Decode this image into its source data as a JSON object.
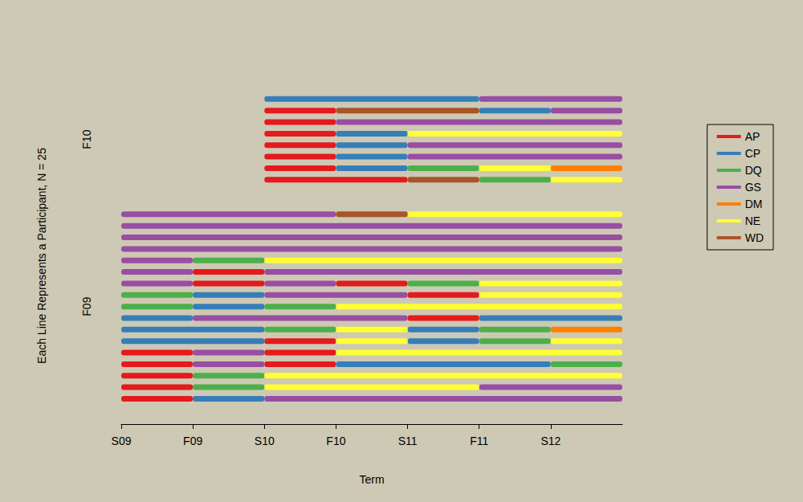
{
  "chart_data": {
    "type": "timeline",
    "xlabel": "Term",
    "ylabel": "Each Line Represents a Participant, N = 25",
    "xlim": [
      0,
      7
    ],
    "xticks": [
      {
        "value": 0,
        "label": "S09"
      },
      {
        "value": 1,
        "label": "F09"
      },
      {
        "value": 2,
        "label": "S10"
      },
      {
        "value": 3,
        "label": "F10"
      },
      {
        "value": 4,
        "label": "S11"
      },
      {
        "value": 5,
        "label": "F11"
      },
      {
        "value": 6,
        "label": "S12"
      }
    ],
    "legend": "right",
    "series": [
      {
        "name": "AP",
        "color": "#e41a1c"
      },
      {
        "name": "CP",
        "color": "#377eb8"
      },
      {
        "name": "DQ",
        "color": "#4daf4a"
      },
      {
        "name": "GS",
        "color": "#984ea3"
      },
      {
        "name": "DM",
        "color": "#ff7f00"
      },
      {
        "name": "NE",
        "color": "#ffff33"
      },
      {
        "name": "WD",
        "color": "#a65628"
      }
    ],
    "groups": [
      {
        "label": "F10",
        "participants": [
          [
            [
              2,
              5,
              "CP"
            ],
            [
              5,
              7,
              "GS"
            ]
          ],
          [
            [
              2,
              3,
              "AP"
            ],
            [
              3,
              5,
              "WD"
            ],
            [
              5,
              6,
              "CP"
            ],
            [
              6,
              7,
              "GS"
            ]
          ],
          [
            [
              2,
              3,
              "AP"
            ],
            [
              3,
              7,
              "GS"
            ]
          ],
          [
            [
              2,
              3,
              "AP"
            ],
            [
              3,
              4,
              "CP"
            ],
            [
              4,
              7,
              "NE"
            ]
          ],
          [
            [
              2,
              3,
              "AP"
            ],
            [
              3,
              4,
              "CP"
            ],
            [
              4,
              7,
              "GS"
            ]
          ],
          [
            [
              2,
              3,
              "AP"
            ],
            [
              3,
              4,
              "CP"
            ],
            [
              4,
              7,
              "GS"
            ]
          ],
          [
            [
              2,
              3,
              "AP"
            ],
            [
              3,
              4,
              "CP"
            ],
            [
              4,
              5,
              "DQ"
            ],
            [
              5,
              6,
              "NE"
            ],
            [
              6,
              7,
              "DM"
            ]
          ],
          [
            [
              2,
              4,
              "AP"
            ],
            [
              4,
              5,
              "WD"
            ],
            [
              5,
              6,
              "DQ"
            ],
            [
              6,
              7,
              "NE"
            ]
          ]
        ]
      },
      {
        "label": "F09",
        "participants": [
          [
            [
              0,
              3,
              "GS"
            ],
            [
              3,
              4,
              "WD"
            ],
            [
              4,
              7,
              "NE"
            ]
          ],
          [
            [
              0,
              7,
              "GS"
            ]
          ],
          [
            [
              0,
              7,
              "GS"
            ]
          ],
          [
            [
              0,
              7,
              "GS"
            ]
          ],
          [
            [
              0,
              1,
              "GS"
            ],
            [
              1,
              2,
              "DQ"
            ],
            [
              2,
              7,
              "NE"
            ]
          ],
          [
            [
              0,
              1,
              "GS"
            ],
            [
              1,
              2,
              "AP"
            ],
            [
              2,
              7,
              "GS"
            ]
          ],
          [
            [
              0,
              1,
              "GS"
            ],
            [
              1,
              2,
              "AP"
            ],
            [
              2,
              3,
              "GS"
            ],
            [
              3,
              4,
              "AP"
            ],
            [
              4,
              5,
              "DQ"
            ],
            [
              5,
              7,
              "NE"
            ]
          ],
          [
            [
              0,
              1,
              "DQ"
            ],
            [
              1,
              2,
              "CP"
            ],
            [
              2,
              4,
              "GS"
            ],
            [
              4,
              5,
              "AP"
            ],
            [
              5,
              7,
              "NE"
            ]
          ],
          [
            [
              0,
              1,
              "DQ"
            ],
            [
              1,
              2,
              "CP"
            ],
            [
              2,
              3,
              "DQ"
            ],
            [
              3,
              7,
              "NE"
            ]
          ],
          [
            [
              0,
              1,
              "CP"
            ],
            [
              1,
              4,
              "GS"
            ],
            [
              4,
              5,
              "AP"
            ],
            [
              5,
              7,
              "CP"
            ]
          ],
          [
            [
              0,
              2,
              "CP"
            ],
            [
              2,
              3,
              "DQ"
            ],
            [
              3,
              4,
              "NE"
            ],
            [
              4,
              5,
              "CP"
            ],
            [
              5,
              6,
              "DQ"
            ],
            [
              6,
              7,
              "DM"
            ]
          ],
          [
            [
              0,
              2,
              "CP"
            ],
            [
              2,
              3,
              "AP"
            ],
            [
              3,
              4,
              "NE"
            ],
            [
              4,
              5,
              "CP"
            ],
            [
              5,
              6,
              "DQ"
            ],
            [
              6,
              7,
              "NE"
            ]
          ],
          [
            [
              0,
              1,
              "AP"
            ],
            [
              1,
              2,
              "GS"
            ],
            [
              2,
              3,
              "AP"
            ],
            [
              3,
              7,
              "NE"
            ]
          ],
          [
            [
              0,
              1,
              "AP"
            ],
            [
              1,
              2,
              "GS"
            ],
            [
              2,
              3,
              "AP"
            ],
            [
              3,
              6,
              "CP"
            ],
            [
              6,
              7,
              "DQ"
            ]
          ],
          [
            [
              0,
              1,
              "AP"
            ],
            [
              1,
              2,
              "DQ"
            ],
            [
              2,
              7,
              "NE"
            ]
          ],
          [
            [
              0,
              1,
              "AP"
            ],
            [
              1,
              2,
              "DQ"
            ],
            [
              2,
              5,
              "NE"
            ],
            [
              5,
              7,
              "GS"
            ]
          ],
          [
            [
              0,
              1,
              "AP"
            ],
            [
              1,
              2,
              "CP"
            ],
            [
              2,
              7,
              "GS"
            ]
          ]
        ]
      }
    ]
  }
}
